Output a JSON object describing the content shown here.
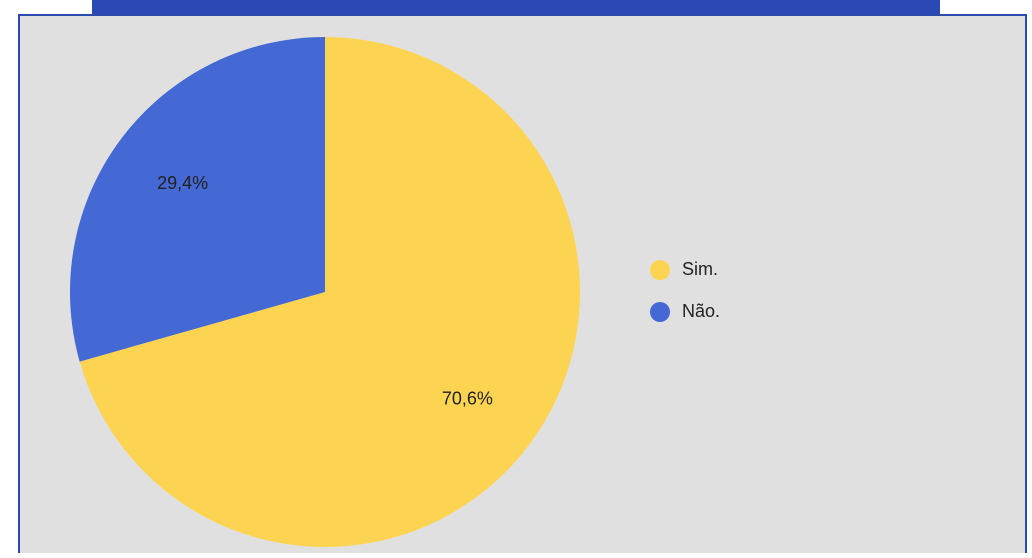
{
  "chart_data": {
    "type": "pie",
    "categories": [
      "Sim.",
      "Não."
    ],
    "values": [
      70.6,
      29.4
    ],
    "value_labels": [
      "70,6%",
      "29,4%"
    ],
    "colors": [
      "#fdd451",
      "#4468d4"
    ]
  }
}
